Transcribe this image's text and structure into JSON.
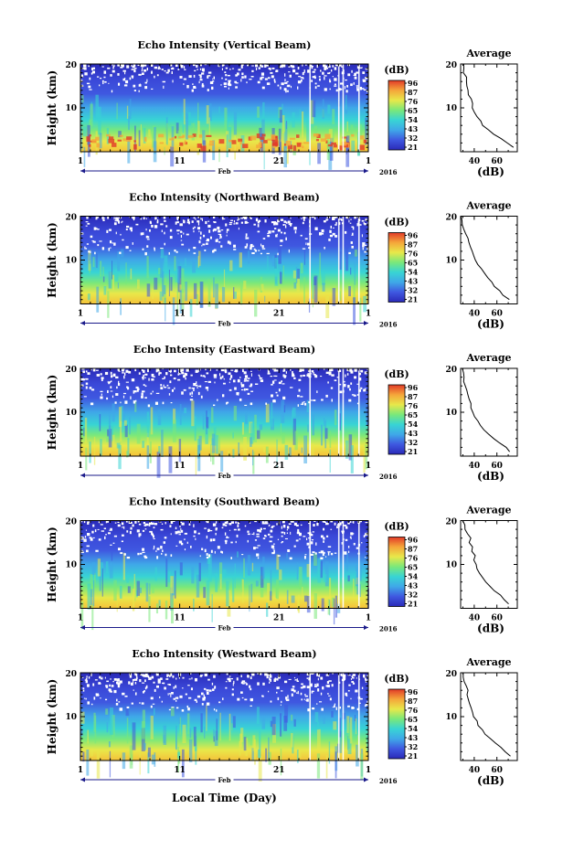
{
  "figure": {
    "x_axis_label": "Local Time (Day)",
    "y_axis_label": "Height (km)",
    "month_label": "Feb",
    "year_label": "2016",
    "x_tick_labels": [
      "1",
      "11",
      "21",
      "1"
    ],
    "y_tick_labels": [
      "10",
      "20"
    ],
    "colorbar_unit": "(dB)",
    "colorbar_ticks": [
      "96",
      "87",
      "76",
      "65",
      "54",
      "43",
      "32",
      "21"
    ],
    "profile_title": "Average",
    "profile_unit": "(dB)",
    "profile_x_ticks": [
      "40",
      "60"
    ],
    "profile_y_ticks": [
      "10",
      "20"
    ]
  },
  "colors": {
    "colormap": [
      "#2a2ab8",
      "#3f58e0",
      "#3fa8e8",
      "#38d4d4",
      "#7ae87a",
      "#e8e84a",
      "#f5a63a",
      "#e23a28"
    ],
    "axis": "#000000",
    "day_axis": "#1a1a8a"
  },
  "chart_data": [
    {
      "type": "heatmap",
      "title": "Echo Intensity (Vertical Beam)",
      "xlabel": "",
      "ylabel": "Height (km)",
      "x_range_days": [
        1,
        32
      ],
      "ylim": [
        0,
        20
      ],
      "color_range_db": [
        21,
        96
      ],
      "profile": {
        "title": "Average",
        "xlabel": "(dB)",
        "xlim": [
          28,
          78
        ],
        "ylim": [
          0,
          20
        ],
        "height_km": [
          1,
          2,
          3,
          4,
          5,
          6,
          7,
          8,
          9,
          10,
          11,
          12,
          13,
          14,
          15,
          16,
          17,
          18,
          19,
          20
        ],
        "db": [
          74,
          69,
          63,
          57,
          52,
          48,
          45,
          42,
          40,
          39,
          38,
          37,
          35,
          34,
          34,
          33,
          33,
          31,
          31,
          30
        ]
      }
    },
    {
      "type": "heatmap",
      "title": "Echo Intensity (Northward Beam)",
      "xlabel": "",
      "ylabel": "Height (km)",
      "x_range_days": [
        1,
        32
      ],
      "ylim": [
        0,
        20
      ],
      "color_range_db": [
        21,
        96
      ],
      "profile": {
        "title": "Average",
        "xlabel": "(dB)",
        "xlim": [
          28,
          78
        ],
        "ylim": [
          0,
          20
        ],
        "height_km": [
          1,
          2,
          3,
          4,
          5,
          6,
          7,
          8,
          9,
          10,
          11,
          12,
          13,
          14,
          15,
          16,
          17,
          18,
          19,
          20
        ],
        "db": [
          71,
          66,
          62,
          58,
          55,
          52,
          49,
          46,
          43,
          41,
          40,
          39,
          37,
          35,
          35,
          33,
          31,
          30,
          29,
          29
        ]
      }
    },
    {
      "type": "heatmap",
      "title": "Echo Intensity (Eastward Beam)",
      "xlabel": "",
      "ylabel": "Height (km)",
      "x_range_days": [
        1,
        32
      ],
      "ylim": [
        0,
        20
      ],
      "color_range_db": [
        21,
        96
      ],
      "profile": {
        "title": "Average",
        "xlabel": "(dB)",
        "xlim": [
          28,
          78
        ],
        "ylim": [
          0,
          20
        ],
        "height_km": [
          1,
          2,
          3,
          4,
          5,
          6,
          7,
          8,
          9,
          10,
          11,
          12,
          13,
          14,
          15,
          16,
          17,
          18,
          19,
          20
        ],
        "db": [
          72,
          68,
          63,
          58,
          53,
          49,
          46,
          43,
          41,
          39,
          37,
          37,
          35,
          34,
          33,
          32,
          31,
          31,
          30,
          30
        ]
      }
    },
    {
      "type": "heatmap",
      "title": "Echo Intensity (Southward Beam)",
      "xlabel": "",
      "ylabel": "Height (km)",
      "x_range_days": [
        1,
        32
      ],
      "ylim": [
        0,
        20
      ],
      "color_range_db": [
        21,
        96
      ],
      "profile": {
        "title": "Average",
        "xlabel": "(dB)",
        "xlim": [
          28,
          78
        ],
        "ylim": [
          0,
          20
        ],
        "height_km": [
          1,
          2,
          3,
          4,
          5,
          6,
          7,
          8,
          9,
          10,
          11,
          12,
          13,
          14,
          15,
          16,
          17,
          18,
          19,
          20
        ],
        "db": [
          70,
          67,
          63,
          58,
          54,
          50,
          47,
          45,
          43,
          41,
          40,
          41,
          38,
          39,
          36,
          37,
          34,
          32,
          31,
          30
        ]
      }
    },
    {
      "type": "heatmap",
      "title": "Echo Intensity (Westward Beam)",
      "xlabel": "Local Time (Day)",
      "ylabel": "Height (km)",
      "x_range_days": [
        1,
        32
      ],
      "ylim": [
        0,
        20
      ],
      "color_range_db": [
        21,
        96
      ],
      "profile": {
        "title": "Average",
        "xlabel": "(dB)",
        "xlim": [
          28,
          78
        ],
        "ylim": [
          0,
          20
        ],
        "height_km": [
          1,
          2,
          3,
          4,
          5,
          6,
          7,
          8,
          9,
          10,
          11,
          12,
          13,
          14,
          15,
          16,
          17,
          18,
          19,
          20
        ],
        "db": [
          72,
          68,
          63,
          58,
          54,
          50,
          47,
          44,
          42,
          40,
          39,
          38,
          36,
          35,
          34,
          34,
          33,
          31,
          31,
          30
        ]
      }
    }
  ]
}
